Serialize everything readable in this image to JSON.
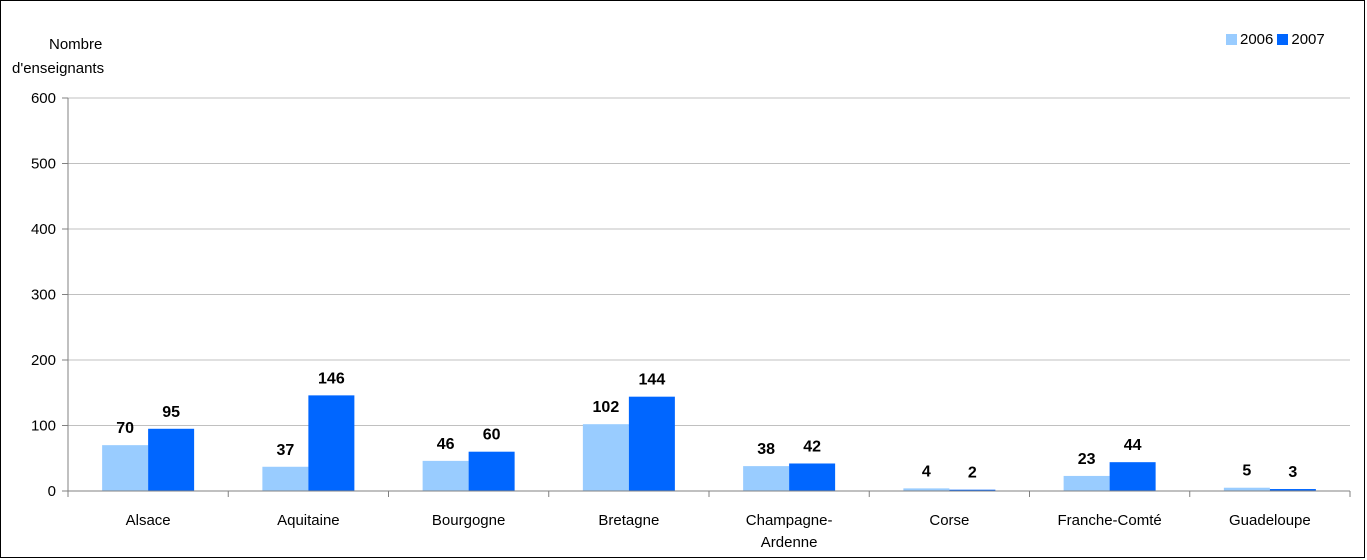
{
  "chart_data": {
    "type": "bar",
    "ylabel_lines": [
      "Nombre",
      "d'enseignants"
    ],
    "categories": [
      [
        "Alsace"
      ],
      [
        "Aquitaine"
      ],
      [
        "Bourgogne"
      ],
      [
        "Bretagne"
      ],
      [
        "Champagne-",
        "Ardenne"
      ],
      [
        "Corse"
      ],
      [
        "Franche-Comté"
      ],
      [
        "Guadeloupe"
      ]
    ],
    "series": [
      {
        "name": "2006",
        "color": "#99ccff",
        "values": [
          70,
          37,
          46,
          102,
          38,
          4,
          23,
          5
        ]
      },
      {
        "name": "2007",
        "color": "#0066ff",
        "values": [
          95,
          146,
          60,
          144,
          42,
          2,
          44,
          3
        ]
      }
    ],
    "ylim": [
      0,
      600
    ],
    "yticks": [
      0,
      100,
      200,
      300,
      400,
      500,
      600
    ],
    "grid": true,
    "legend_position": "top-right"
  }
}
